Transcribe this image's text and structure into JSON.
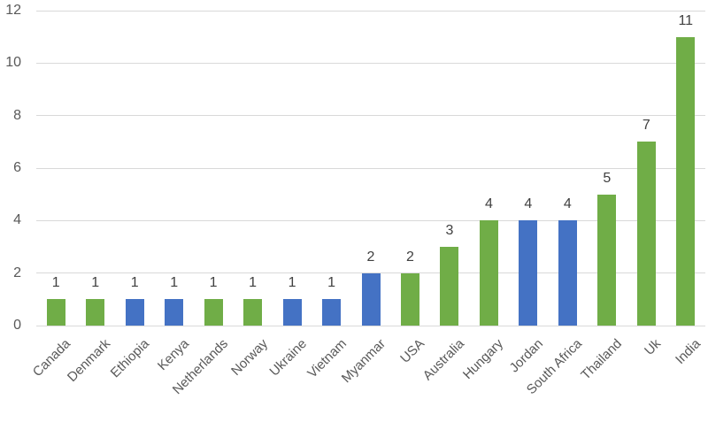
{
  "chart_data": {
    "type": "bar",
    "title": "",
    "xlabel": "",
    "ylabel": "",
    "categories": [
      "Canada",
      "Denmark",
      "Ethiopia",
      "Kenya",
      "Netherlands",
      "Norway",
      "Ukraine",
      "Vietnam",
      "Myanmar",
      "USA",
      "Australia",
      "Hungary",
      "Jordan",
      "South Africa",
      "Thailand",
      "Uk",
      "India"
    ],
    "values": [
      1,
      1,
      1,
      1,
      1,
      1,
      1,
      1,
      2,
      2,
      3,
      4,
      4,
      4,
      5,
      7,
      11
    ],
    "bar_colors": [
      "green",
      "green",
      "blue",
      "blue",
      "green",
      "green",
      "blue",
      "blue",
      "blue",
      "green",
      "green",
      "green",
      "blue",
      "blue",
      "green",
      "green",
      "green"
    ],
    "colors": {
      "green": "#70AD47",
      "blue": "#4472C4"
    },
    "ylim": [
      0,
      12
    ],
    "yticks": [
      0,
      2,
      4,
      6,
      8,
      10,
      12
    ],
    "grid": true,
    "legend": "none",
    "data_labels_shown": true,
    "gridline_color": "#d9d9d9",
    "axis_label_color": "#595959",
    "value_label_color": "#404040"
  }
}
